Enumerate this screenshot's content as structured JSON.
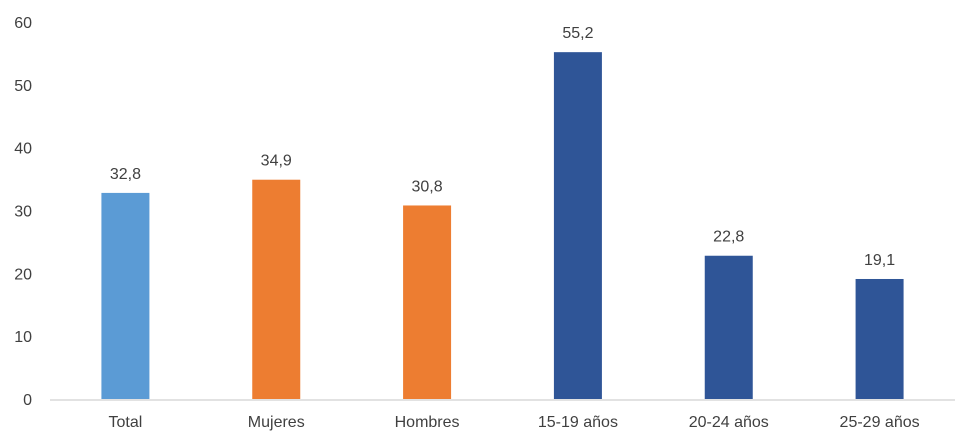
{
  "chart_data": {
    "type": "bar",
    "categories": [
      "Total",
      "Mujeres",
      "Hombres",
      "15-19 años",
      "20-24 años",
      "25-29 años"
    ],
    "values": [
      32.8,
      34.9,
      30.8,
      55.2,
      22.8,
      19.1
    ],
    "value_labels": [
      "32,8",
      "34,9",
      "30,8",
      "55,2",
      "22,8",
      "19,1"
    ],
    "bar_colors": [
      "#5B9BD5",
      "#ED7D31",
      "#ED7D31",
      "#2F5597",
      "#2F5597",
      "#2F5597"
    ],
    "y_ticks": [
      0,
      10,
      20,
      30,
      40,
      50,
      60
    ],
    "y_tick_labels": [
      "0",
      "10",
      "20",
      "30",
      "40",
      "50",
      "60"
    ],
    "ylim": [
      0,
      60
    ],
    "grid": false,
    "legend": "none",
    "axis_color": "#D9D9D9",
    "text_color": "#404040",
    "title": "",
    "xlabel": "",
    "ylabel": ""
  }
}
